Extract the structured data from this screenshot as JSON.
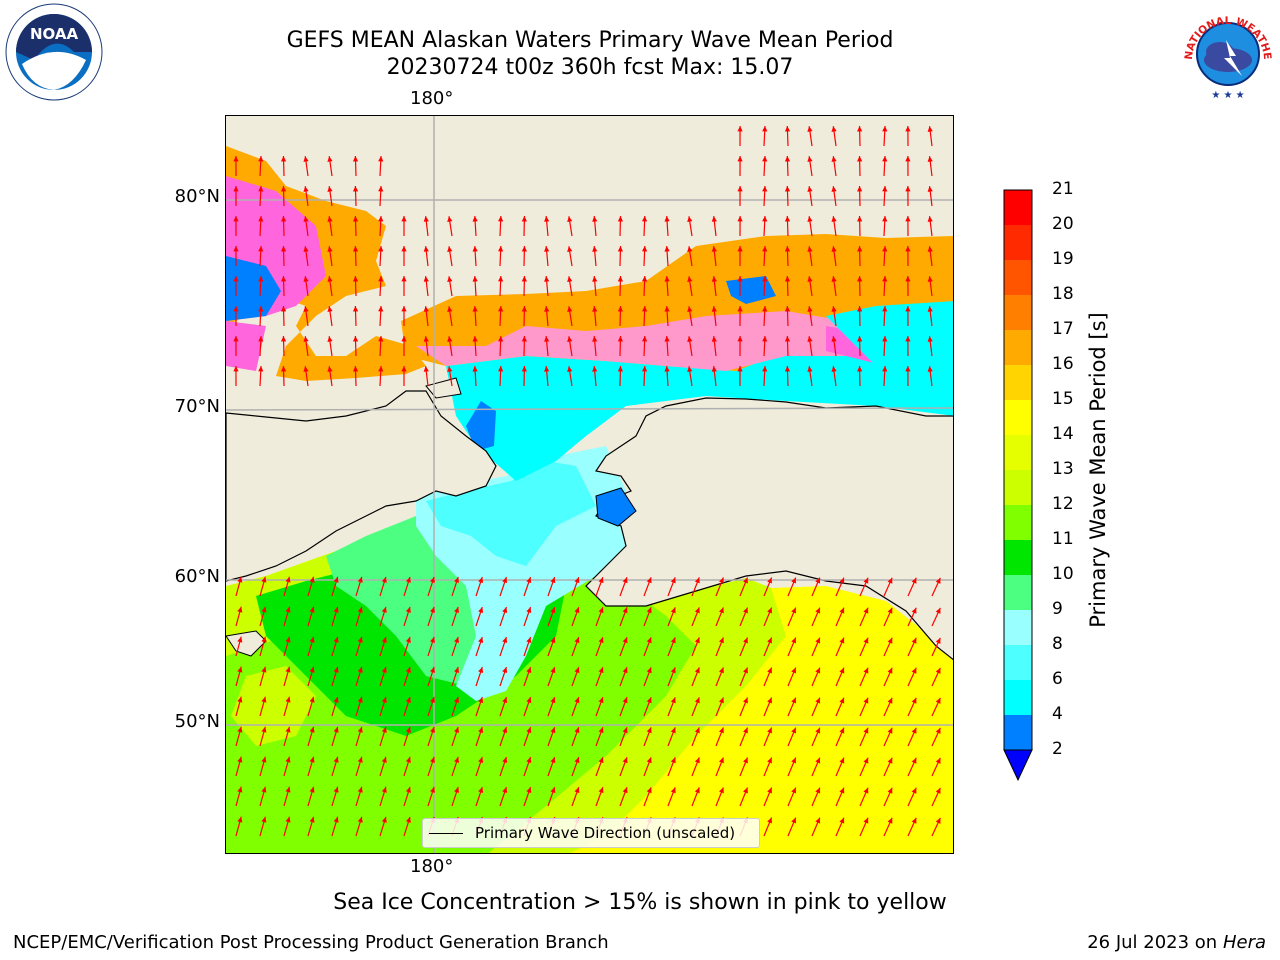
{
  "title": {
    "line1": "GEFS MEAN Alaskan Waters Primary Wave Mean Period",
    "line2": "20230724 t00z 360h fcst   Max: 15.07"
  },
  "axes": {
    "lon_top": "180°",
    "lon_bottom": "180°",
    "lat_labels": [
      "80°N",
      "70°N",
      "60°N",
      "50°N"
    ]
  },
  "legend": {
    "label": "Primary Wave Direction (unscaled)"
  },
  "colorbar": {
    "label": "Primary Wave Mean Period [s]",
    "ticks": [
      "21",
      "20",
      "19",
      "18",
      "17",
      "16",
      "15",
      "14",
      "13",
      "12",
      "11",
      "10",
      "9",
      "8",
      "6",
      "4",
      "2"
    ],
    "colors": [
      "#ff0000",
      "#ff2a00",
      "#ff5400",
      "#ff7f00",
      "#ffaa00",
      "#ffd400",
      "#ffff00",
      "#e6ff00",
      "#ccff00",
      "#80ff00",
      "#00e600",
      "#4dff80",
      "#99ffff",
      "#4dffff",
      "#00ffff",
      "#007fff"
    ],
    "extend_color": "#0000ff"
  },
  "map": {
    "land_color": "#efecdc",
    "arrow_color": "#ff0000",
    "grid_color": "#b0b0b0"
  },
  "caption": "Sea Ice Concentration > 15% is shown in pink to yellow",
  "footer": {
    "left": "NCEP/EMC/Verification Post Processing Product Generation Branch",
    "date": "26 Jul 2023 on ",
    "machine": "Hera"
  },
  "logos": {
    "noaa_text": "NOAA",
    "nws_text": "NATIONAL WEATHER SERVICE"
  }
}
